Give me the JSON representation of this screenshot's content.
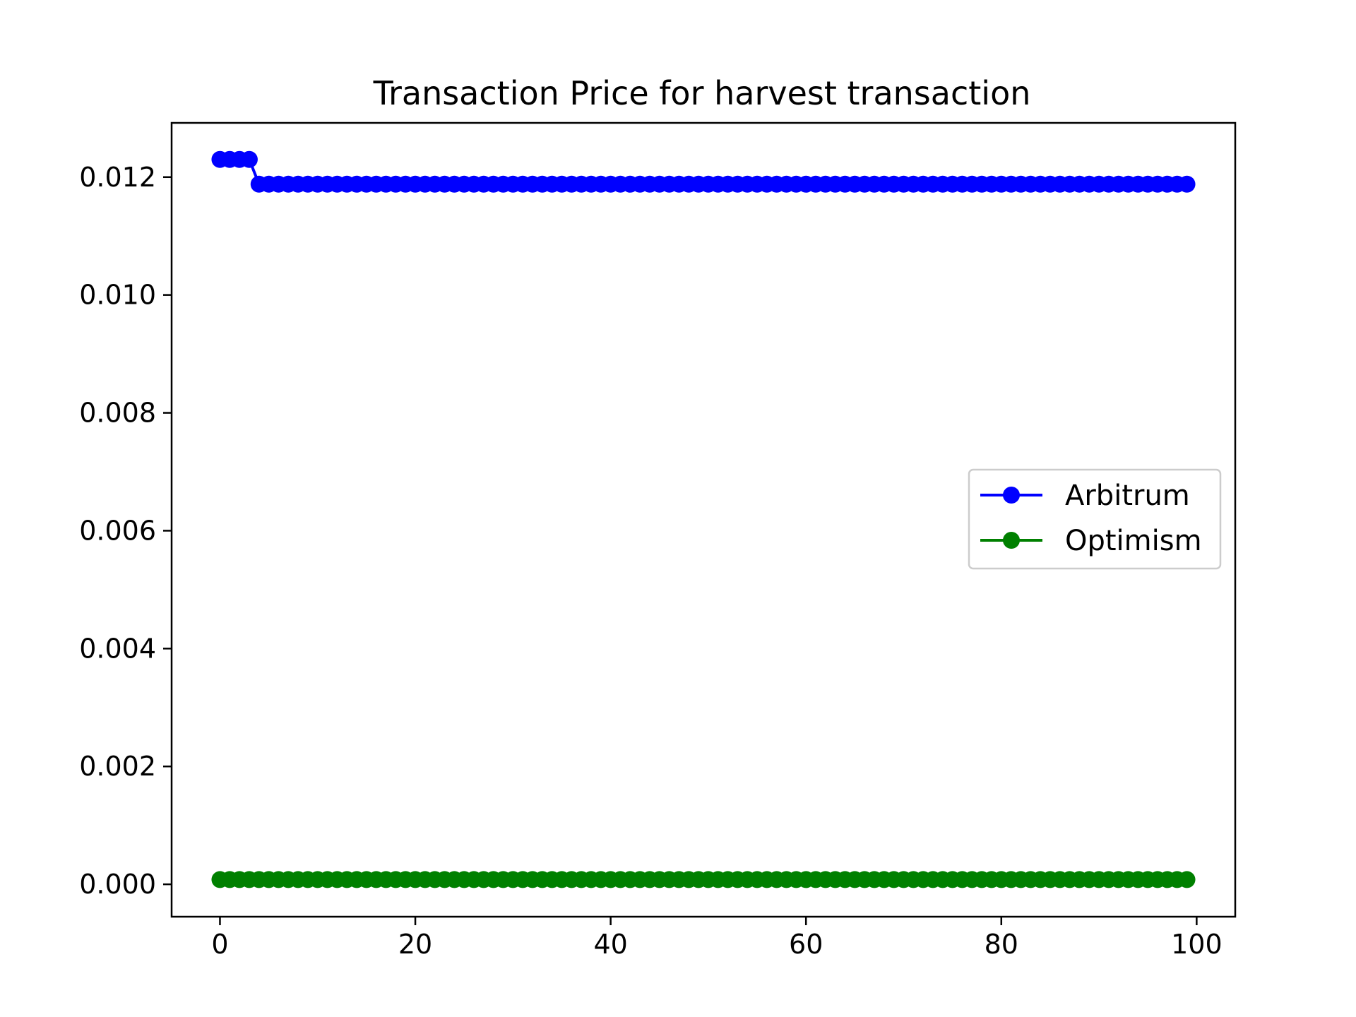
{
  "chart_data": {
    "type": "line",
    "title": "Transaction Price for harvest transaction",
    "xlabel": "",
    "ylabel": "",
    "xlim": [
      -4.95,
      103.95
    ],
    "ylim": [
      -0.00055,
      0.01292
    ],
    "x_ticks": [
      0,
      20,
      40,
      60,
      80,
      100
    ],
    "x_tick_labels": [
      "0",
      "20",
      "40",
      "60",
      "80",
      "100"
    ],
    "y_ticks": [
      0.0,
      0.002,
      0.004,
      0.006,
      0.008,
      0.01,
      0.012
    ],
    "y_tick_labels": [
      "0.000",
      "0.002",
      "0.004",
      "0.006",
      "0.008",
      "0.010",
      "0.012"
    ],
    "grid": false,
    "legend_position": "center-right",
    "series": [
      {
        "name": "Arbitrum",
        "color": "#0000ff",
        "marker": "circle",
        "segments": [
          {
            "x_start": 0,
            "x_end": 3,
            "value": 0.0123
          },
          {
            "x_start": 4,
            "x_end": 99,
            "value": 0.01188
          }
        ]
      },
      {
        "name": "Optimism",
        "color": "#008000",
        "marker": "circle",
        "segments": [
          {
            "x_start": 0,
            "x_end": 99,
            "value": 8e-05
          }
        ]
      }
    ]
  }
}
